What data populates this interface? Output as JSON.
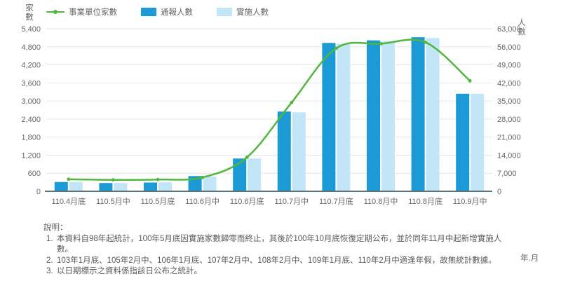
{
  "chart_data": {
    "type": "combo-bar-line",
    "categories": [
      "110.4月底",
      "110.5月中",
      "110.5月底",
      "110.6月中",
      "110.6月底",
      "110.7月中",
      "110.7月底",
      "110.8月中",
      "110.8月底",
      "110.9月中"
    ],
    "series": [
      {
        "name": "事業單位家數",
        "type": "line",
        "axis": "left",
        "color": "#4fb83c",
        "values": [
          400,
          380,
          390,
          460,
          1130,
          2950,
          4750,
          4900,
          4950,
          3670
        ]
      },
      {
        "name": "通報人數",
        "type": "bar",
        "axis": "right",
        "color": "#1b9ad6",
        "values": [
          3600,
          3200,
          3400,
          5900,
          12700,
          30900,
          57500,
          58500,
          59700,
          37800
        ]
      },
      {
        "name": "實施人數",
        "type": "bar",
        "axis": "right",
        "color": "#c3e5f8",
        "values": [
          3600,
          3200,
          3500,
          5700,
          12700,
          30600,
          57200,
          58200,
          59400,
          37800
        ]
      }
    ],
    "left_axis": {
      "title": "家數",
      "min": 0,
      "max": 5400,
      "step": 600
    },
    "right_axis": {
      "title": "人數",
      "min": 0,
      "max": 63000,
      "step": 7000
    },
    "x_axis_unit": "年.月",
    "grid": true,
    "legend_position": "top-left",
    "colors": {
      "grid": "#e6e6e6",
      "baseline": "#5f6d75",
      "label": "#666666"
    }
  },
  "footnotes": {
    "heading": "說明：",
    "items": [
      "本資料自98年起統計，100年5月底因實施家數歸零而終止，其後於100年10月底恢復定期公布，並於同年11月中起新增實施人數。",
      "103年1月底、105年2月中、106年1月底、107年2月中、108年2月中、109年1月底、110年2月中適逢年假，故無統計數據。",
      "以日期標示之資料係指該日公布之統計。"
    ]
  }
}
